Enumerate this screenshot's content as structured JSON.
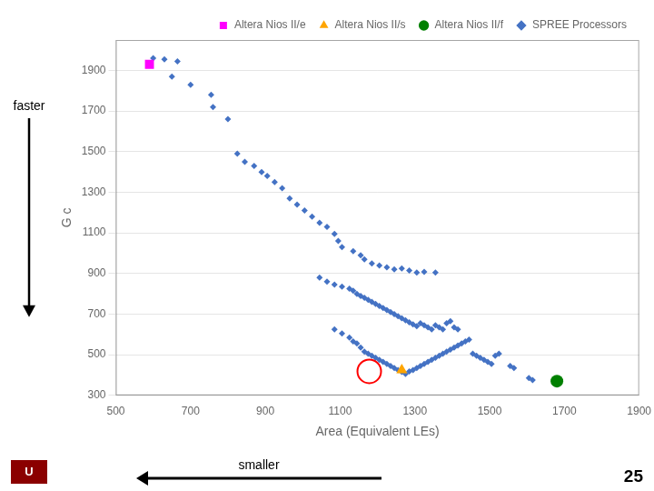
{
  "chart_data": {
    "type": "scatter",
    "xlabel": "Area (Equivalent LEs)",
    "ylabel": "G c",
    "series": [
      {
        "name": "SPREE Processors",
        "color": "#4472C4",
        "marker": "diamond",
        "x": [
          600,
          630,
          665,
          650,
          700,
          755,
          760,
          800,
          825,
          845,
          870,
          890,
          905,
          925,
          945,
          965,
          985,
          1005,
          1025,
          1045,
          1065,
          1085,
          1095,
          1105,
          1135,
          1155,
          1165,
          1185,
          1205,
          1225,
          1245,
          1265,
          1285,
          1305,
          1325,
          1355,
          1045,
          1065,
          1085,
          1105,
          1125,
          1135,
          1145,
          1155,
          1165,
          1175,
          1185,
          1195,
          1205,
          1215,
          1225,
          1235,
          1245,
          1255,
          1265,
          1275,
          1285,
          1295,
          1305,
          1315,
          1325,
          1335,
          1345,
          1355,
          1365,
          1375,
          1385,
          1395,
          1405,
          1415,
          1085,
          1105,
          1125,
          1135,
          1145,
          1155,
          1165,
          1175,
          1185,
          1195,
          1205,
          1215,
          1225,
          1235,
          1245,
          1255,
          1265,
          1275,
          1285,
          1295,
          1305,
          1315,
          1325,
          1335,
          1345,
          1355,
          1365,
          1375,
          1385,
          1395,
          1405,
          1415,
          1425,
          1435,
          1445,
          1455,
          1465,
          1475,
          1485,
          1495,
          1505,
          1515,
          1525,
          1555,
          1565,
          1605,
          1615
        ],
        "values": [
          1960,
          1955,
          1945,
          1870,
          1830,
          1780,
          1720,
          1660,
          1490,
          1450,
          1430,
          1400,
          1380,
          1350,
          1320,
          1270,
          1240,
          1210,
          1180,
          1150,
          1130,
          1095,
          1060,
          1030,
          1010,
          990,
          970,
          950,
          940,
          930,
          920,
          925,
          915,
          905,
          908,
          905,
          880,
          860,
          845,
          835,
          825,
          815,
          800,
          790,
          780,
          770,
          760,
          750,
          740,
          730,
          720,
          710,
          700,
          690,
          680,
          670,
          660,
          650,
          640,
          655,
          645,
          635,
          625,
          645,
          635,
          625,
          655,
          665,
          635,
          625,
          625,
          605,
          585,
          565,
          555,
          535,
          515,
          505,
          495,
          485,
          475,
          465,
          455,
          445,
          435,
          425,
          415,
          405,
          418,
          425,
          435,
          445,
          455,
          465,
          475,
          485,
          495,
          505,
          515,
          525,
          535,
          545,
          555,
          565,
          575,
          505,
          495,
          485,
          475,
          465,
          455,
          495,
          505,
          445,
          435,
          385,
          375
        ]
      },
      {
        "name": "Altera Nios II/e",
        "color": "#FF00FF",
        "marker": "square",
        "x": [
          590
        ],
        "values": [
          1930
        ]
      },
      {
        "name": "Altera Nios II/s",
        "color": "#FFA500",
        "marker": "triangle",
        "x": [
          1265
        ],
        "values": [
          425
        ]
      },
      {
        "name": "Altera Nios II/f",
        "color": "#008000",
        "marker": "circle",
        "x": [
          1680
        ],
        "values": [
          370
        ]
      }
    ],
    "highlight": {
      "x": 1178,
      "y": 418,
      "color": "#FF0000",
      "marker": "circle"
    },
    "annotations": [
      {
        "text": "faster",
        "arrow": "down"
      },
      {
        "text": "smaller",
        "arrow": "left"
      },
      {
        "text": "25"
      },
      {
        "text": "U",
        "color": "#8B0000"
      }
    ],
    "xlim": [
      500,
      1900
    ],
    "ylim": [
      300,
      2050
    ],
    "xticks": [
      500,
      700,
      900,
      1100,
      1300,
      1500,
      1700,
      1900
    ],
    "yticks": [
      300,
      500,
      700,
      900,
      1100,
      1300,
      1500,
      1700,
      1900
    ],
    "grid": "y",
    "legend": "upper right"
  }
}
